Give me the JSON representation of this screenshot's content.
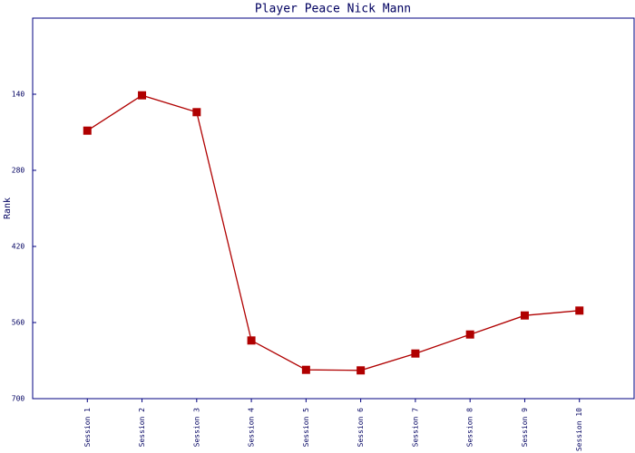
{
  "chart_data": {
    "type": "line",
    "title": "Player Peace Nick Mann",
    "y_label": "Rank",
    "categories": [
      "Session 1",
      "Session 2",
      "Session 3",
      "Session 4",
      "Session 5",
      "Session 6",
      "Session 7",
      "Session 8",
      "Session 9",
      "Session 10"
    ],
    "series": [
      {
        "name": "Rank",
        "color": "#b00000",
        "values": [
          207,
          142,
          173,
          593,
          647,
          648,
          617,
          582,
          547,
          538
        ]
      }
    ],
    "ylim": [
      700,
      0
    ],
    "yticks": [
      140,
      280,
      420,
      560,
      700
    ],
    "grid": false
  }
}
